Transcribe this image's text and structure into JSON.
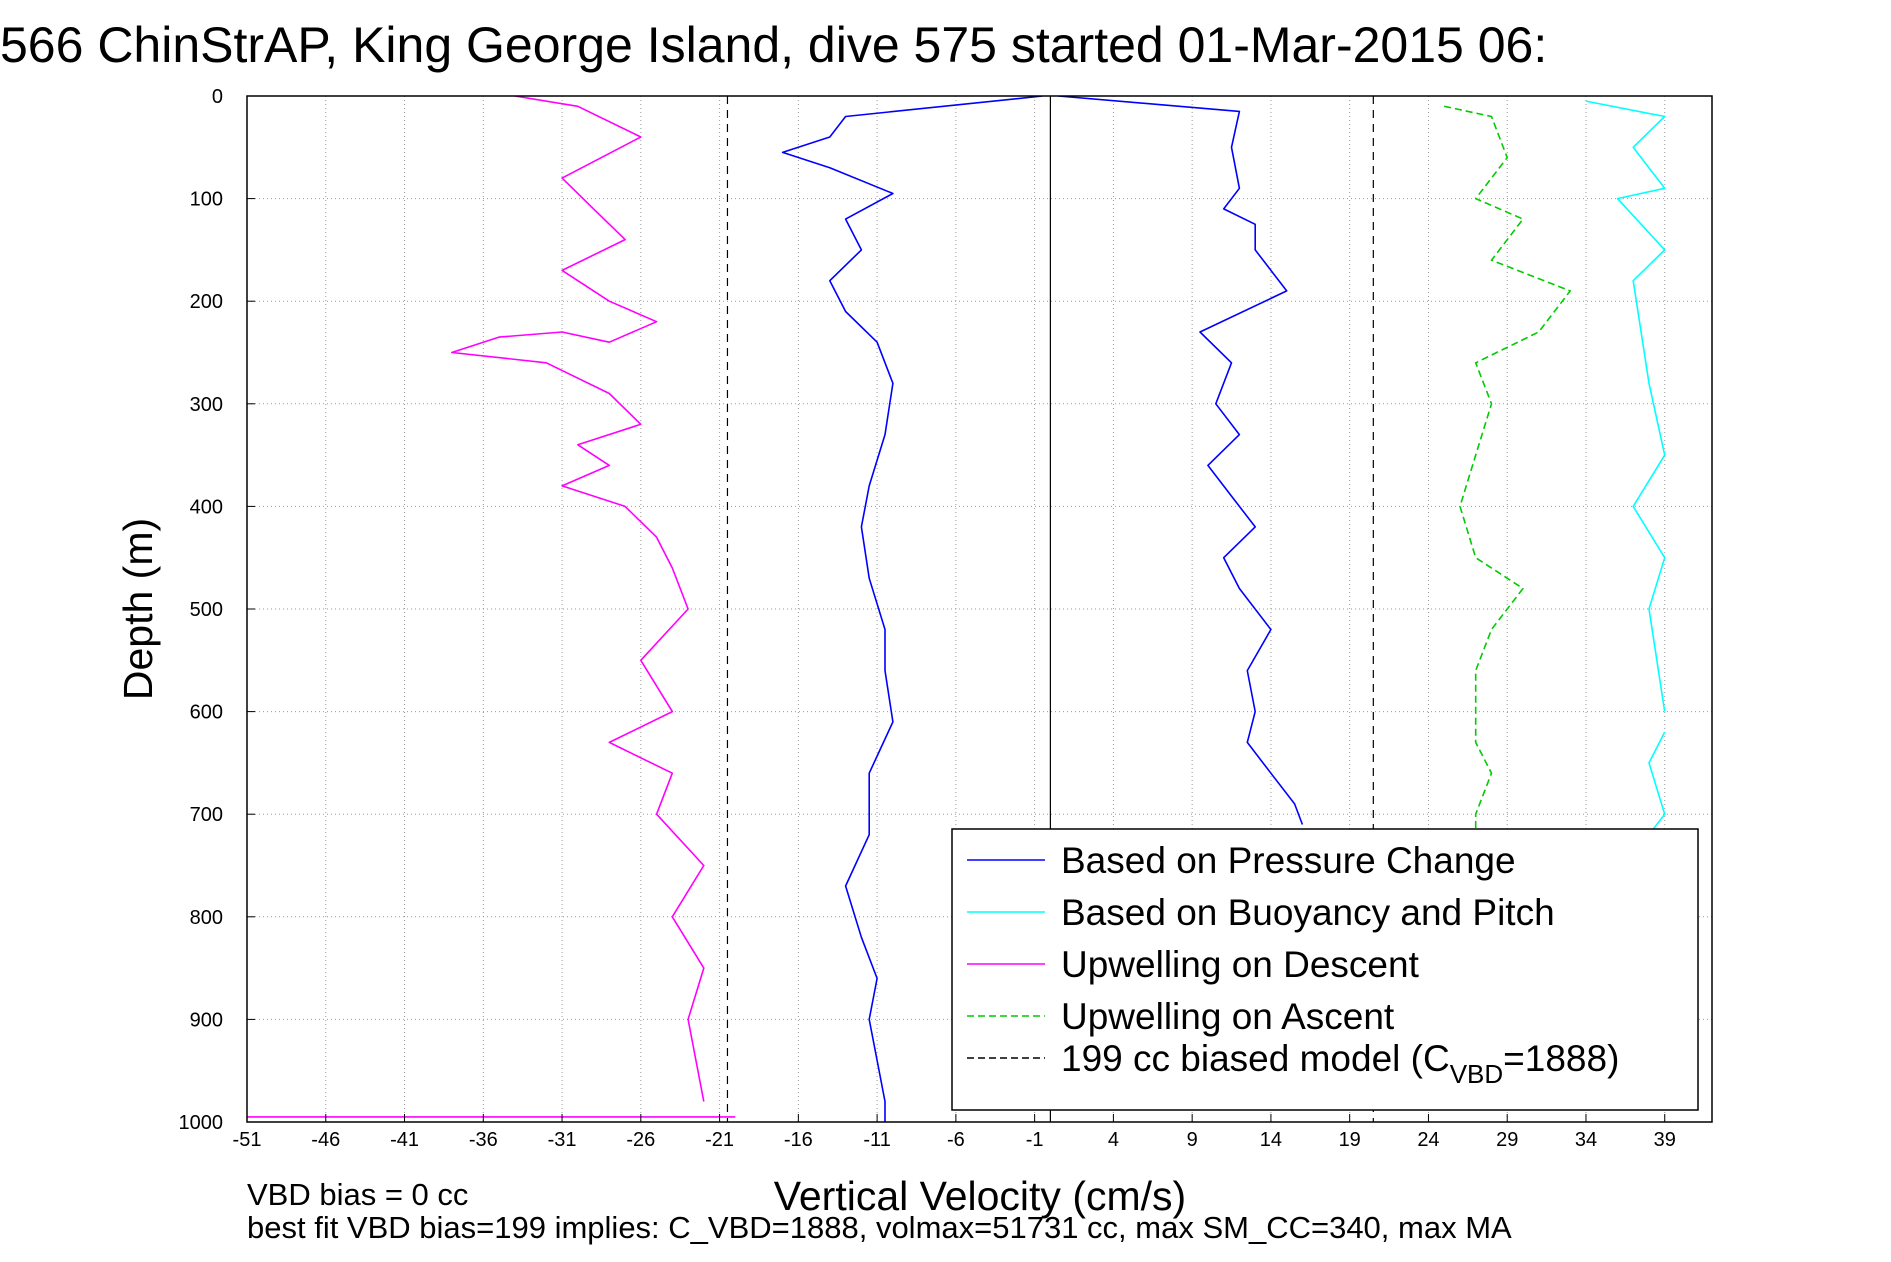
{
  "chart_data": {
    "type": "line",
    "title": "566 ChinStrAP, King George Island, dive 575 started 01-Mar-2015 06:",
    "xlabel": "Vertical Velocity (cm/s)",
    "ylabel": "Depth (m)",
    "xlim": [
      -51,
      42
    ],
    "ylim": [
      0,
      1000
    ],
    "y_reversed": true,
    "x_ticks": [
      "-51",
      "-46",
      "-41",
      "-36",
      "-31",
      "-26",
      "-21",
      "-16",
      "-11",
      "-6",
      "-1",
      "4",
      "9",
      "14",
      "19",
      "24",
      "29",
      "34",
      "39"
    ],
    "y_ticks": [
      "0",
      "100",
      "200",
      "300",
      "400",
      "500",
      "600",
      "700",
      "800",
      "900",
      "1000"
    ],
    "grid": true,
    "legend_position": "bottom-right",
    "reference_lines": [
      {
        "x": 0,
        "style": "solid",
        "color": "#000000"
      },
      {
        "x": -20.5,
        "style": "dashed",
        "color": "#000000"
      },
      {
        "x": 20.5,
        "style": "dashed",
        "color": "#000000"
      }
    ],
    "series": [
      {
        "name": "Based on Pressure Change",
        "color": "#0000ff",
        "style": "solid",
        "segments": [
          {
            "x": [
              -0.5,
              -13,
              -14,
              -17,
              -14,
              -10,
              -13,
              -12,
              -14,
              -13,
              -11,
              -10,
              -10.5,
              -11.5,
              -12,
              -11.5,
              -10.5,
              -10.5,
              -10,
              -11.5,
              -11.5,
              -13,
              -12,
              -11,
              -11.5,
              -11,
              -10.5,
              -10.5
            ],
            "y": [
              0,
              20,
              40,
              55,
              70,
              95,
              120,
              150,
              180,
              210,
              240,
              280,
              330,
              380,
              420,
              470,
              520,
              560,
              610,
              660,
              720,
              770,
              820,
              860,
              900,
              940,
              980,
              1000
            ]
          },
          {
            "x": [
              0.5,
              12,
              11.5,
              12,
              11,
              13,
              13,
              15,
              9.5,
              11.5,
              10.5,
              12,
              10,
              11.5,
              13,
              11,
              12,
              14,
              12.5,
              13,
              12.5,
              14,
              15.5,
              16
            ],
            "y": [
              0,
              15,
              50,
              90,
              110,
              125,
              150,
              190,
              230,
              260,
              300,
              330,
              360,
              390,
              420,
              450,
              480,
              520,
              560,
              600,
              630,
              660,
              690,
              710
            ]
          }
        ]
      },
      {
        "name": "Based on Buoyancy and Pitch",
        "color": "#00ffff",
        "style": "solid",
        "segments": [
          {
            "x": [
              34,
              39,
              37,
              39,
              36,
              39,
              37,
              38,
              39,
              37,
              39,
              38,
              39
            ],
            "y": [
              5,
              20,
              50,
              90,
              100,
              150,
              180,
              280,
              350,
              400,
              450,
              500,
              600
            ]
          },
          {
            "x": [
              39,
              38,
              39,
              38,
              39
            ],
            "y": [
              620,
              650,
              700,
              720,
              730
            ]
          }
        ]
      },
      {
        "name": "Upwelling on Descent",
        "color": "#ff00ff",
        "style": "solid",
        "segments": [
          {
            "x": [
              -34,
              -30,
              -26,
              -31,
              -29,
              -27,
              -31,
              -28,
              -25,
              -28,
              -31,
              -35,
              -38,
              -32,
              -28,
              -26,
              -30,
              -28,
              -31,
              -27,
              -25,
              -24,
              -23,
              -26,
              -24,
              -28,
              -24,
              -25,
              -22,
              -24,
              -22,
              -23,
              -22
            ],
            "y": [
              0,
              10,
              40,
              80,
              110,
              140,
              170,
              200,
              220,
              240,
              230,
              235,
              250,
              260,
              290,
              320,
              340,
              360,
              380,
              400,
              430,
              460,
              500,
              550,
              600,
              630,
              660,
              700,
              750,
              800,
              850,
              900,
              980
            ]
          },
          {
            "x": [
              -51,
              -20
            ],
            "y": [
              995,
              995
            ]
          }
        ]
      },
      {
        "name": "Upwelling on Ascent",
        "color": "#00cc00",
        "style": "dashed",
        "segments": [
          {
            "x": [
              25,
              28,
              29,
              27,
              30,
              28,
              33,
              31,
              27,
              28,
              27,
              26,
              27,
              30,
              28,
              27,
              27,
              27,
              28,
              27,
              27
            ],
            "y": [
              10,
              20,
              60,
              100,
              120,
              160,
              190,
              230,
              260,
              300,
              350,
              400,
              450,
              480,
              520,
              560,
              600,
              630,
              660,
              700,
              730
            ]
          }
        ]
      },
      {
        "name": "199 cc biased model (C",
        "legend_subscript": "VBD",
        "legend_suffix": "=1888)",
        "color": "#000000",
        "style": "dashed",
        "segments": []
      }
    ],
    "annotations": [
      "VBD bias = 0 cc",
      "best fit VBD bias=199 implies: C_VBD=1888, volmax=51731 cc, max SM_CC=340, max MA"
    ]
  }
}
